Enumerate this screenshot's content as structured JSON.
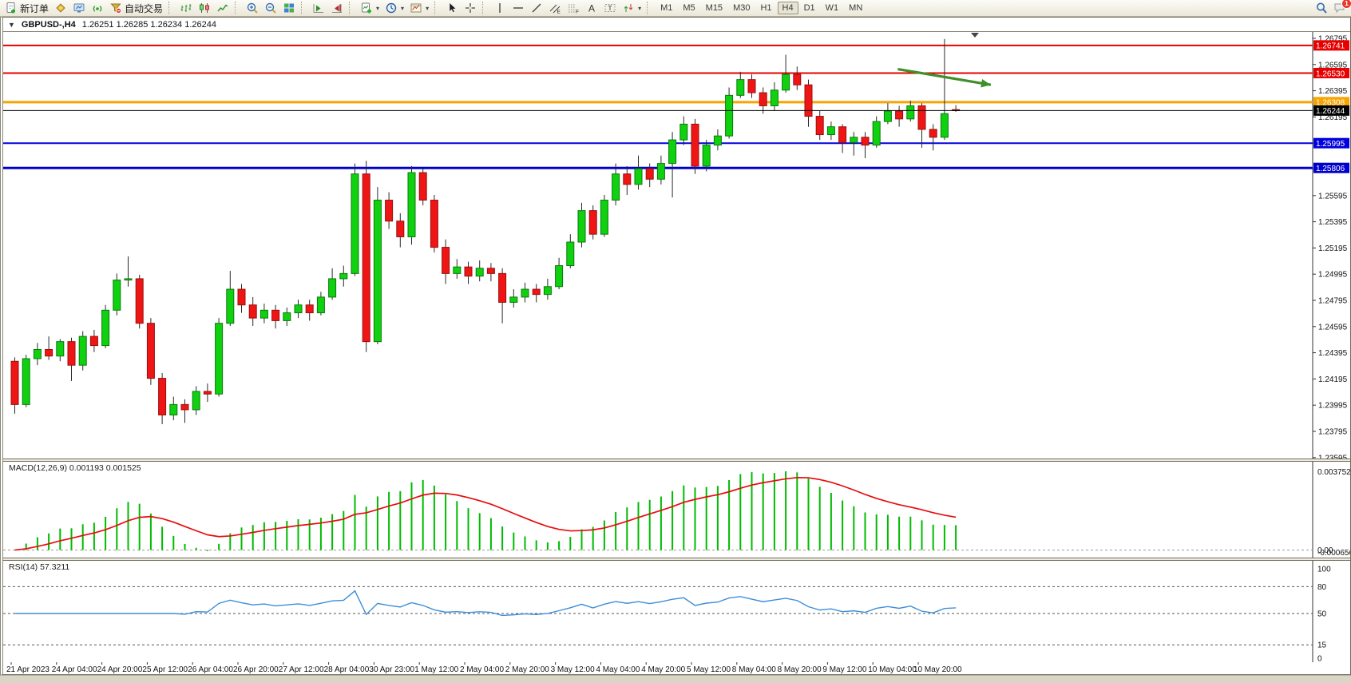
{
  "toolbar": {
    "items": [
      {
        "type": "button",
        "name": "new-order-button",
        "icon": "doc-plus",
        "label": "新订单"
      },
      {
        "type": "button",
        "name": "mql5-community-button",
        "icon": "gold-box"
      },
      {
        "type": "button",
        "name": "virtual-hosting-button",
        "icon": "monitor"
      },
      {
        "type": "button",
        "name": "signals-button",
        "icon": "signal"
      },
      {
        "type": "button",
        "name": "autotrading-button",
        "icon": "funnel",
        "label": "自动交易"
      },
      {
        "type": "separator"
      },
      {
        "type": "button",
        "name": "bar-chart-button",
        "icon": "bars-chart"
      },
      {
        "type": "button",
        "name": "candlestick-chart-button",
        "icon": "candles"
      },
      {
        "type": "button",
        "name": "line-chart-button",
        "icon": "line-chart"
      },
      {
        "type": "separator"
      },
      {
        "type": "button",
        "name": "zoom-in-button",
        "icon": "zoom-in"
      },
      {
        "type": "button",
        "name": "zoom-out-button",
        "icon": "zoom-out"
      },
      {
        "type": "button",
        "name": "tile-windows-button",
        "icon": "tiles"
      },
      {
        "type": "separator"
      },
      {
        "type": "button",
        "name": "auto-scroll-button",
        "icon": "autoscroll"
      },
      {
        "type": "button",
        "name": "chart-shift-button",
        "icon": "chart-shift"
      },
      {
        "type": "separator"
      },
      {
        "type": "button",
        "name": "indicators-button",
        "icon": "indicators-add",
        "dropdown": true
      },
      {
        "type": "button",
        "name": "periods-button",
        "icon": "clock",
        "dropdown": true
      },
      {
        "type": "button",
        "name": "templates-button",
        "icon": "template",
        "dropdown": true
      },
      {
        "type": "separator"
      },
      {
        "type": "button",
        "name": "cursor-button",
        "icon": "cursor"
      },
      {
        "type": "button",
        "name": "crosshair-button",
        "icon": "crosshair"
      },
      {
        "type": "separator"
      },
      {
        "type": "button",
        "name": "vertical-line-button",
        "icon": "vline"
      },
      {
        "type": "button",
        "name": "horizontal-line-button",
        "icon": "hline"
      },
      {
        "type": "button",
        "name": "trendline-button",
        "icon": "trendline"
      },
      {
        "type": "button",
        "name": "equidistant-channel-button",
        "icon": "channel"
      },
      {
        "type": "button",
        "name": "fibonacci-button",
        "icon": "fibo"
      },
      {
        "type": "button",
        "name": "text-button",
        "icon": "text-a"
      },
      {
        "type": "button",
        "name": "text-label-button",
        "icon": "label-t"
      },
      {
        "type": "button",
        "name": "arrows-button",
        "icon": "arrows",
        "dropdown": true
      },
      {
        "type": "separator"
      },
      {
        "type": "tf",
        "name": "timeframe-m1-button",
        "label": "M1"
      },
      {
        "type": "tf",
        "name": "timeframe-m5-button",
        "label": "M5"
      },
      {
        "type": "tf",
        "name": "timeframe-m15-button",
        "label": "M15"
      },
      {
        "type": "tf",
        "name": "timeframe-m30-button",
        "label": "M30"
      },
      {
        "type": "tf",
        "name": "timeframe-h1-button",
        "label": "H1"
      },
      {
        "type": "tf",
        "name": "timeframe-h4-button",
        "label": "H4",
        "active": true
      },
      {
        "type": "tf",
        "name": "timeframe-d1-button",
        "label": "D1"
      },
      {
        "type": "tf",
        "name": "timeframe-w1-button",
        "label": "W1"
      },
      {
        "type": "tf",
        "name": "timeframe-mn-button",
        "label": "MN"
      },
      {
        "type": "spacer"
      },
      {
        "type": "button",
        "name": "search-button",
        "icon": "search"
      },
      {
        "type": "button",
        "name": "chat-button",
        "icon": "chat",
        "badge": "1"
      }
    ]
  },
  "window": {
    "collapse_glyph": "▼",
    "title": "GBPUSD-,H4",
    "ohlc": "1.26251 1.26285 1.26234 1.26244"
  },
  "chart_data": {
    "type": "candlestick",
    "symbol": "GBPUSD-",
    "period": "H4",
    "ohlc_header": {
      "open": "1.26251",
      "high": "1.26285",
      "low": "1.26234",
      "close": "1.26244"
    },
    "ylim": [
      1.23595,
      1.26844
    ],
    "y_ticks": [
      "1.26795",
      "1.26595",
      "1.26395",
      "1.26195",
      "1.25995",
      "1.25795",
      "1.25595",
      "1.25395",
      "1.25195",
      "1.24995",
      "1.24795",
      "1.24595",
      "1.24395",
      "1.24195",
      "1.23995",
      "1.23795",
      "1.23595"
    ],
    "x_labels": [
      "21 Apr 2023",
      "24 Apr 04:00",
      "24 Apr 20:00",
      "25 Apr 12:00",
      "26 Apr 04:00",
      "26 Apr 20:00",
      "27 Apr 12:00",
      "28 Apr 04:00",
      "30 Apr 23:00",
      "1 May 12:00",
      "2 May 04:00",
      "2 May 20:00",
      "3 May 12:00",
      "4 May 04:00",
      "4 May 20:00",
      "5 May 12:00",
      "8 May 04:00",
      "8 May 20:00",
      "9 May 12:00",
      "10 May 04:00",
      "10 May 20:00"
    ],
    "x_label_step": 4,
    "bull_color": "#0fd10f",
    "bear_color": "#ef1515",
    "wick_color": "#2a2a2a",
    "candles": [
      [
        1.2433,
        1.2436,
        1.2393,
        1.24
      ],
      [
        1.24,
        1.2438,
        1.2398,
        1.2435
      ],
      [
        1.2435,
        1.2447,
        1.243,
        1.2442
      ],
      [
        1.2442,
        1.2452,
        1.2434,
        1.2437
      ],
      [
        1.2437,
        1.245,
        1.2433,
        1.2448
      ],
      [
        1.2448,
        1.2451,
        1.2418,
        1.243
      ],
      [
        1.243,
        1.2456,
        1.2426,
        1.2452
      ],
      [
        1.2452,
        1.2457,
        1.244,
        1.2445
      ],
      [
        1.2445,
        1.2476,
        1.2443,
        1.2472
      ],
      [
        1.2472,
        1.25,
        1.2468,
        1.2495
      ],
      [
        1.2495,
        1.2513,
        1.249,
        1.2496
      ],
      [
        1.2496,
        1.2499,
        1.2458,
        1.2462
      ],
      [
        1.2462,
        1.2466,
        1.2415,
        1.242
      ],
      [
        1.242,
        1.2424,
        1.2385,
        1.2392
      ],
      [
        1.2392,
        1.2406,
        1.2388,
        1.24
      ],
      [
        1.24,
        1.2404,
        1.2386,
        1.2396
      ],
      [
        1.2396,
        1.2414,
        1.2392,
        1.241
      ],
      [
        1.241,
        1.2416,
        1.2402,
        1.2408
      ],
      [
        1.2408,
        1.2466,
        1.2406,
        1.2462
      ],
      [
        1.2462,
        1.2502,
        1.246,
        1.2488
      ],
      [
        1.2488,
        1.2492,
        1.247,
        1.2476
      ],
      [
        1.2476,
        1.2482,
        1.246,
        1.2466
      ],
      [
        1.2466,
        1.2477,
        1.2462,
        1.2472
      ],
      [
        1.2472,
        1.2476,
        1.2458,
        1.2464
      ],
      [
        1.2464,
        1.2474,
        1.246,
        1.247
      ],
      [
        1.247,
        1.248,
        1.2466,
        1.2476
      ],
      [
        1.2476,
        1.248,
        1.2464,
        1.247
      ],
      [
        1.247,
        1.2486,
        1.2468,
        1.2482
      ],
      [
        1.2482,
        1.2504,
        1.248,
        1.2496
      ],
      [
        1.2496,
        1.2506,
        1.249,
        1.25
      ],
      [
        1.25,
        1.2584,
        1.2498,
        1.2576
      ],
      [
        1.2576,
        1.2586,
        1.244,
        1.2448
      ],
      [
        1.2448,
        1.2566,
        1.2446,
        1.2556
      ],
      [
        1.2556,
        1.2562,
        1.2534,
        1.254
      ],
      [
        1.254,
        1.2546,
        1.252,
        1.2528
      ],
      [
        1.2528,
        1.2582,
        1.2522,
        1.2577
      ],
      [
        1.2577,
        1.258,
        1.2552,
        1.2556
      ],
      [
        1.2556,
        1.256,
        1.2516,
        1.252
      ],
      [
        1.252,
        1.2526,
        1.2492,
        1.25
      ],
      [
        1.25,
        1.2511,
        1.2496,
        1.2505
      ],
      [
        1.2505,
        1.2509,
        1.2492,
        1.2498
      ],
      [
        1.2498,
        1.251,
        1.2494,
        1.2504
      ],
      [
        1.2504,
        1.2508,
        1.2494,
        1.25
      ],
      [
        1.25,
        1.2504,
        1.2462,
        1.2478
      ],
      [
        1.2478,
        1.2488,
        1.2474,
        1.2482
      ],
      [
        1.2482,
        1.2493,
        1.2478,
        1.2488
      ],
      [
        1.2488,
        1.2492,
        1.2478,
        1.2484
      ],
      [
        1.2484,
        1.2496,
        1.248,
        1.249
      ],
      [
        1.249,
        1.2512,
        1.2488,
        1.2506
      ],
      [
        1.2506,
        1.253,
        1.2504,
        1.2524
      ],
      [
        1.2524,
        1.2554,
        1.252,
        1.2548
      ],
      [
        1.2548,
        1.2552,
        1.2526,
        1.253
      ],
      [
        1.253,
        1.256,
        1.2528,
        1.2556
      ],
      [
        1.2556,
        1.2584,
        1.2552,
        1.2576
      ],
      [
        1.2576,
        1.2582,
        1.256,
        1.2568
      ],
      [
        1.2568,
        1.259,
        1.2564,
        1.258
      ],
      [
        1.258,
        1.2584,
        1.2566,
        1.2572
      ],
      [
        1.2572,
        1.259,
        1.2568,
        1.2584
      ],
      [
        1.2584,
        1.2608,
        1.2558,
        1.2602
      ],
      [
        1.2602,
        1.262,
        1.2598,
        1.2614
      ],
      [
        1.2614,
        1.2618,
        1.2576,
        1.2582
      ],
      [
        1.2582,
        1.2602,
        1.2578,
        1.2598
      ],
      [
        1.2598,
        1.261,
        1.2594,
        1.2605
      ],
      [
        1.2605,
        1.2642,
        1.2603,
        1.2636
      ],
      [
        1.2636,
        1.2654,
        1.2634,
        1.2648
      ],
      [
        1.2648,
        1.2652,
        1.2634,
        1.2638
      ],
      [
        1.2638,
        1.2642,
        1.2622,
        1.2628
      ],
      [
        1.2628,
        1.2646,
        1.2624,
        1.264
      ],
      [
        1.264,
        1.2667,
        1.2638,
        1.2652
      ],
      [
        1.2652,
        1.2658,
        1.264,
        1.2644
      ],
      [
        1.2644,
        1.2648,
        1.2612,
        1.262
      ],
      [
        1.262,
        1.2624,
        1.2602,
        1.2606
      ],
      [
        1.2606,
        1.2616,
        1.2602,
        1.2612
      ],
      [
        1.2612,
        1.2614,
        1.2592,
        1.26
      ],
      [
        1.26,
        1.2608,
        1.259,
        1.2604
      ],
      [
        1.2604,
        1.2608,
        1.2588,
        1.2598
      ],
      [
        1.2598,
        1.262,
        1.2596,
        1.2616
      ],
      [
        1.2616,
        1.263,
        1.2614,
        1.2624
      ],
      [
        1.2624,
        1.2628,
        1.2612,
        1.2618
      ],
      [
        1.2618,
        1.2632,
        1.2616,
        1.2628
      ],
      [
        1.2628,
        1.263,
        1.2596,
        1.261
      ],
      [
        1.261,
        1.2614,
        1.2594,
        1.2604
      ],
      [
        1.2604,
        1.2679,
        1.2602,
        1.2622
      ],
      [
        1.26251,
        1.26285,
        1.26234,
        1.26244
      ]
    ],
    "hlines": [
      {
        "name": "resistance-line-1",
        "price": 1.26741,
        "color": "#e60000",
        "width": 2,
        "label": "1.26741"
      },
      {
        "name": "resistance-line-2",
        "price": 1.2653,
        "color": "#e60000",
        "width": 2,
        "label": "1.26530"
      },
      {
        "name": "pivot-line",
        "price": 1.26308,
        "color": "#f7a400",
        "width": 3,
        "label": "1.26308"
      },
      {
        "name": "support-line-1",
        "price": 1.25995,
        "color": "#0000dd",
        "width": 2,
        "label": "1.25995"
      },
      {
        "name": "support-line-2",
        "price": 1.25806,
        "color": "#0000cc",
        "width": 3,
        "label": "1.25806"
      }
    ],
    "current_price": {
      "price": 1.26244,
      "label": "1.26244",
      "color": "#000000"
    },
    "annotation_arrow": {
      "x1_candle": 78.2,
      "price1": 1.2656,
      "x2_candle": 86.4,
      "price2": 1.2644,
      "color": "#3f8f2b"
    },
    "shift_marker_candle": 85,
    "indicators": [
      {
        "name": "MACD",
        "label": "MACD(12,26,9) 0.001193 0.001525",
        "params": [
          12,
          26,
          9
        ],
        "values": [
          "0.001193",
          "0.001525"
        ],
        "axis_ticks": [
          "0.003752",
          "0.00",
          "-0.000656"
        ],
        "histogram_color": "#00bb00",
        "signal_color": "#e80c0c"
      },
      {
        "name": "RSI",
        "label": "RSI(14) 57.3211",
        "params": [
          14
        ],
        "value": "57.3211",
        "axis_ticks": [
          "100",
          "80",
          "50",
          "15",
          "0"
        ],
        "levels": [
          80,
          50,
          15
        ],
        "line_color": "#3d8fd9"
      }
    ]
  }
}
